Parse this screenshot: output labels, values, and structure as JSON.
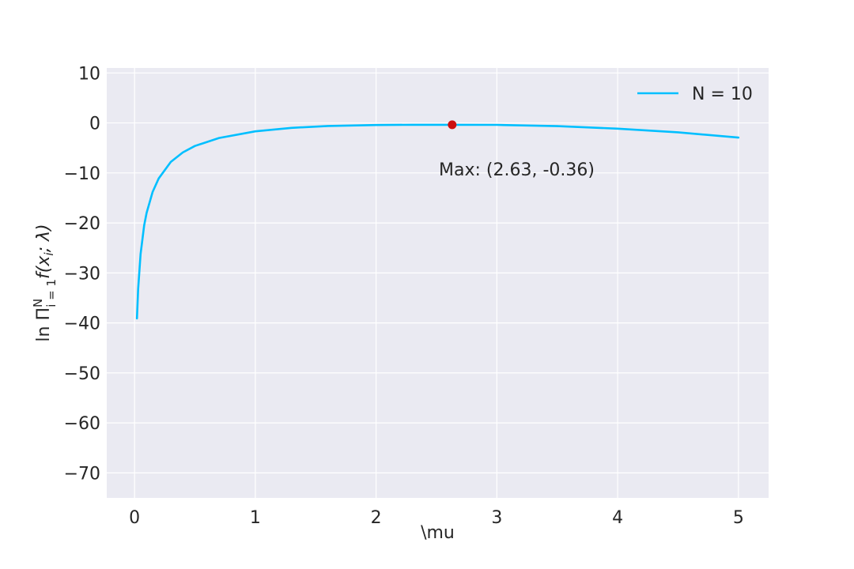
{
  "chart_data": {
    "type": "line",
    "xlabel": "\\mu",
    "ylabel_parts": {
      "prefix": "ln Π",
      "sup": "N",
      "sub": "i = 1",
      "body": "f(x",
      "body_sub": "i",
      "suffix": "; λ)"
    },
    "xlim": [
      -0.23,
      5.25
    ],
    "ylim": [
      -75,
      11
    ],
    "xticks": [
      0,
      1,
      2,
      3,
      4,
      5
    ],
    "xtick_labels": [
      "0",
      "1",
      "2",
      "3",
      "4",
      "5"
    ],
    "yticks": [
      10,
      0,
      -10,
      -20,
      -30,
      -40,
      -50,
      -60,
      -70
    ],
    "ytick_labels": [
      "10",
      "0",
      "−10",
      "−20",
      "−30",
      "−40",
      "−50",
      "−60",
      "−70"
    ],
    "grid": true,
    "legend_placement": "top-right",
    "series": [
      {
        "name": "N = 10",
        "color": "#00bfff",
        "x": [
          0.02,
          0.03,
          0.05,
          0.08,
          0.1,
          0.15,
          0.2,
          0.3,
          0.4,
          0.5,
          0.7,
          1.0,
          1.3,
          1.6,
          2.0,
          2.3,
          2.63,
          3.0,
          3.5,
          4.0,
          4.5,
          5.0
        ],
        "y": [
          -39.1,
          -33.2,
          -26.2,
          -20.5,
          -18.0,
          -13.8,
          -11.1,
          -7.8,
          -5.9,
          -4.6,
          -3.0,
          -1.68,
          -0.99,
          -0.61,
          -0.41,
          -0.37,
          -0.36,
          -0.39,
          -0.63,
          -1.14,
          -1.87,
          -2.93
        ]
      }
    ],
    "highlight_point": {
      "x": 2.63,
      "y": -0.36,
      "color": "#cc1111"
    },
    "annotation": {
      "text": "Max: (2.63, -0.36)",
      "x": 2.52,
      "y": -10
    },
    "colors": {
      "plot_bg": "#eaeaf2",
      "grid": "#ffffff",
      "text": "#262626"
    }
  }
}
